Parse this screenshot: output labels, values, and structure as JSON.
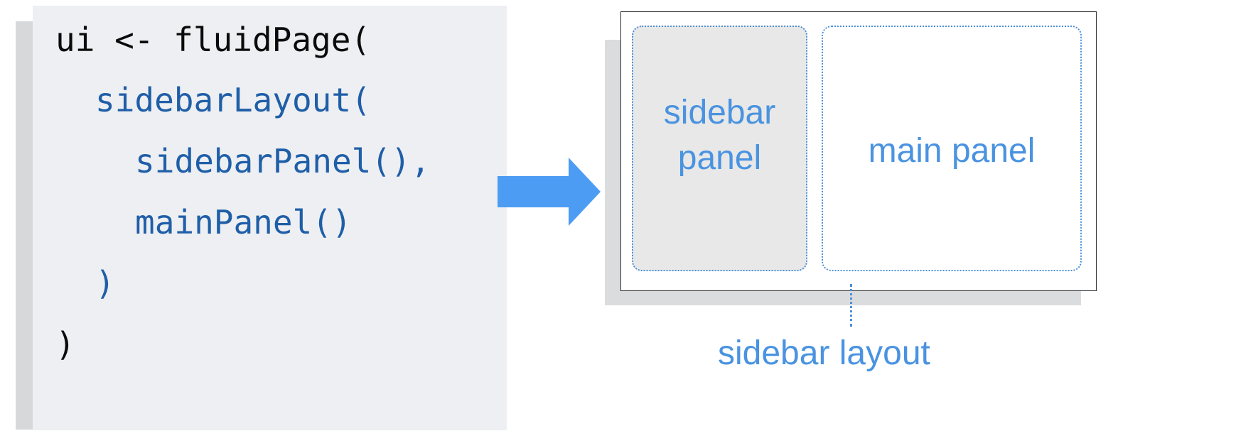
{
  "code": {
    "lines": [
      "ui <- fluidPage(",
      "sidebarLayout(",
      "sidebarPanel(),",
      "mainPanel()",
      ")",
      ")"
    ]
  },
  "diagram": {
    "sidebar_panel_line1": "sidebar",
    "sidebar_panel_line2": "panel",
    "main_panel_label": "main panel",
    "layout_label": "sidebar layout"
  },
  "colors": {
    "code_black": "#0b0b0b",
    "code_blue": "#1f5ea8",
    "diagram_blue": "#4a93e0",
    "arrow_blue": "#4d9cf4",
    "card_bg": "#edeff2",
    "sidebar_bg": "#e8e8e8"
  },
  "icons": {
    "arrow": "right-arrow-icon"
  }
}
